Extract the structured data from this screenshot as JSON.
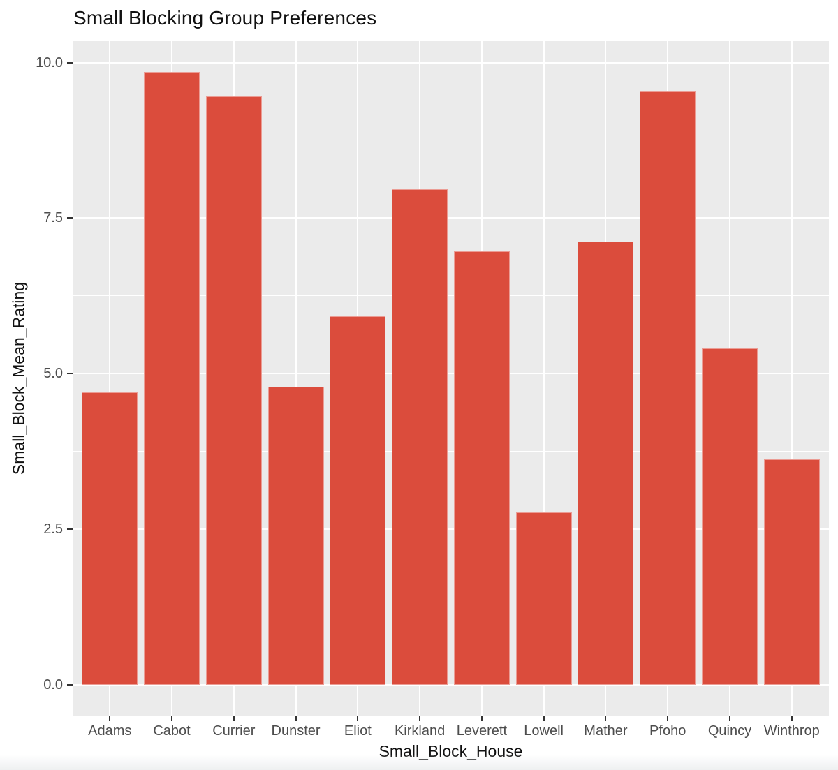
{
  "chart_data": {
    "type": "bar",
    "title": "Small Blocking Group Preferences",
    "xlabel": "Small_Block_House",
    "ylabel": "Small_Block_Mean_Rating",
    "categories": [
      "Adams",
      "Cabot",
      "Currier",
      "Dunster",
      "Eliot",
      "Kirkland",
      "Leverett",
      "Lowell",
      "Mather",
      "Pfoho",
      "Quincy",
      "Winthrop"
    ],
    "values": [
      4.7,
      9.85,
      9.46,
      4.79,
      5.92,
      7.97,
      6.97,
      2.77,
      7.12,
      9.54,
      5.41,
      3.62
    ],
    "y_tick_labels": [
      "0.0",
      "2.5",
      "5.0",
      "7.5",
      "10.0"
    ],
    "y_tick_values": [
      0,
      2.5,
      5.0,
      7.5,
      10.0
    ],
    "y_minor_tick_values": [
      1.25,
      3.75,
      6.25,
      8.75
    ],
    "ylim": [
      0,
      10
    ],
    "grid": true,
    "legend_position": "none",
    "bar_width_ratio": 0.9,
    "colors": {
      "bar_fill": "#DB4C3C",
      "panel_background": "#EBEBEB",
      "gridline": "#FFFFFF",
      "tick_text": "#4D4D4D",
      "tick_mark": "#333333",
      "title_text": "#111111"
    }
  }
}
